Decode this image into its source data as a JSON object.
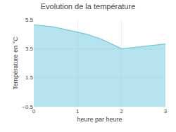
{
  "chart_data": {
    "type": "area",
    "title": "Evolution de la température",
    "xlabel": "heure par heure",
    "ylabel": "Température en °C",
    "x": [
      0,
      0.15,
      0.3,
      0.45,
      0.6,
      0.75,
      0.9,
      1.05,
      1.2,
      1.35,
      1.5,
      1.65,
      1.8,
      1.95,
      2.0,
      2.1,
      2.2,
      2.35,
      2.5,
      2.65,
      2.8,
      2.95,
      3.0
    ],
    "values": [
      5.15,
      5.1,
      5.05,
      5.0,
      4.9,
      4.8,
      4.7,
      4.6,
      4.5,
      4.35,
      4.2,
      4.0,
      3.8,
      3.6,
      3.5,
      3.52,
      3.55,
      3.6,
      3.65,
      3.7,
      3.75,
      3.8,
      3.82
    ],
    "color": "#6cc8de",
    "xlim": [
      0,
      3
    ],
    "ylim": [
      -0.5,
      5.5
    ],
    "xticks": [
      0,
      1,
      2,
      3
    ],
    "yticks": [
      -0.5,
      1.5,
      3.5,
      5.5
    ],
    "grid": true
  }
}
